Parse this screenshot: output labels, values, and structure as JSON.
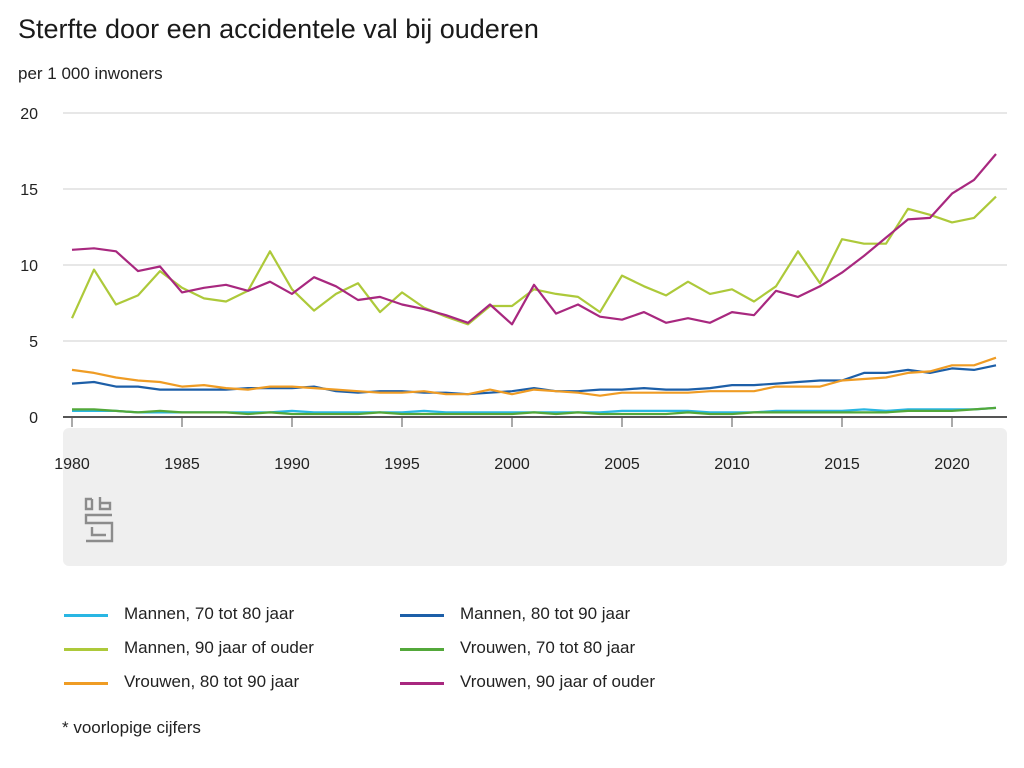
{
  "header": {
    "title": "Sterfte door een accidentele val bij ouderen",
    "unit": "per 1 000 inwoners"
  },
  "footnote": "* voorlopige cijfers",
  "logo": {
    "icon": "cbs-logo-icon"
  },
  "chart_data": {
    "type": "line",
    "title": "Sterfte door een accidentele val bij ouderen",
    "ylabel": "per 1 000 inwoners",
    "xlabel": "",
    "xlim": [
      1980,
      2022
    ],
    "ylim": [
      0,
      20
    ],
    "xticks": [
      1980,
      1985,
      1990,
      1995,
      2000,
      2005,
      2010,
      2015,
      2020
    ],
    "yticks": [
      0,
      5,
      10,
      15,
      20
    ],
    "grid": "horizontal",
    "legend_position": "bottom",
    "x": [
      1980,
      1981,
      1982,
      1983,
      1984,
      1985,
      1986,
      1987,
      1988,
      1989,
      1990,
      1991,
      1992,
      1993,
      1994,
      1995,
      1996,
      1997,
      1998,
      1999,
      2000,
      2001,
      2002,
      2003,
      2004,
      2005,
      2006,
      2007,
      2008,
      2009,
      2010,
      2011,
      2012,
      2013,
      2014,
      2015,
      2016,
      2017,
      2018,
      2019,
      2020,
      2021,
      2022
    ],
    "series": [
      {
        "name": "Mannen, 70 tot 80 jaar",
        "color": "#29b6e3",
        "values": [
          0.4,
          0.4,
          0.4,
          0.3,
          0.3,
          0.3,
          0.3,
          0.3,
          0.3,
          0.3,
          0.4,
          0.3,
          0.3,
          0.3,
          0.3,
          0.3,
          0.4,
          0.3,
          0.3,
          0.3,
          0.3,
          0.3,
          0.3,
          0.3,
          0.3,
          0.4,
          0.4,
          0.4,
          0.4,
          0.3,
          0.3,
          0.3,
          0.4,
          0.4,
          0.4,
          0.4,
          0.5,
          0.4,
          0.5,
          0.5,
          0.5,
          0.5,
          0.6
        ]
      },
      {
        "name": "Mannen, 80 tot 90 jaar",
        "color": "#1d5fa8",
        "values": [
          2.2,
          2.3,
          2.0,
          2.0,
          1.8,
          1.8,
          1.8,
          1.8,
          1.9,
          1.9,
          1.9,
          2.0,
          1.7,
          1.6,
          1.7,
          1.7,
          1.6,
          1.6,
          1.5,
          1.6,
          1.7,
          1.9,
          1.7,
          1.7,
          1.8,
          1.8,
          1.9,
          1.8,
          1.8,
          1.9,
          2.1,
          2.1,
          2.2,
          2.3,
          2.4,
          2.4,
          2.9,
          2.9,
          3.1,
          2.9,
          3.2,
          3.1,
          3.4
        ]
      },
      {
        "name": "Mannen, 90 jaar of ouder",
        "color": "#adc93a",
        "values": [
          6.5,
          9.7,
          7.4,
          8.0,
          9.6,
          8.5,
          7.8,
          7.6,
          8.3,
          10.9,
          8.4,
          7.0,
          8.1,
          8.8,
          6.9,
          8.2,
          7.2,
          6.6,
          6.1,
          7.3,
          7.3,
          8.4,
          8.1,
          7.9,
          6.9,
          9.3,
          8.6,
          8.0,
          8.9,
          8.1,
          8.4,
          7.6,
          8.6,
          10.9,
          8.8,
          11.7,
          11.4,
          11.4,
          13.7,
          13.3,
          12.8,
          13.1,
          14.5
        ]
      },
      {
        "name": "Vrouwen, 70 tot 80 jaar",
        "color": "#53a83a",
        "values": [
          0.5,
          0.5,
          0.4,
          0.3,
          0.4,
          0.3,
          0.3,
          0.3,
          0.2,
          0.3,
          0.2,
          0.2,
          0.2,
          0.2,
          0.3,
          0.2,
          0.2,
          0.2,
          0.2,
          0.2,
          0.2,
          0.3,
          0.2,
          0.3,
          0.2,
          0.2,
          0.2,
          0.2,
          0.3,
          0.2,
          0.2,
          0.3,
          0.3,
          0.3,
          0.3,
          0.3,
          0.3,
          0.3,
          0.4,
          0.4,
          0.4,
          0.5,
          0.6
        ]
      },
      {
        "name": "Vrouwen, 80 tot 90 jaar",
        "color": "#ef9c24",
        "values": [
          3.1,
          2.9,
          2.6,
          2.4,
          2.3,
          2.0,
          2.1,
          1.9,
          1.8,
          2.0,
          2.0,
          1.9,
          1.8,
          1.7,
          1.6,
          1.6,
          1.7,
          1.5,
          1.5,
          1.8,
          1.5,
          1.8,
          1.7,
          1.6,
          1.4,
          1.6,
          1.6,
          1.6,
          1.6,
          1.7,
          1.7,
          1.7,
          2.0,
          2.0,
          2.0,
          2.4,
          2.5,
          2.6,
          2.9,
          3.0,
          3.4,
          3.4,
          3.9
        ]
      },
      {
        "name": "Vrouwen, 90 jaar of ouder",
        "color": "#a8287f",
        "values": [
          11.0,
          11.1,
          10.9,
          9.6,
          9.9,
          8.2,
          8.5,
          8.7,
          8.3,
          8.9,
          8.1,
          9.2,
          8.6,
          7.7,
          7.9,
          7.4,
          7.1,
          6.7,
          6.2,
          7.4,
          6.1,
          8.7,
          6.8,
          7.4,
          6.6,
          6.4,
          6.9,
          6.2,
          6.5,
          6.2,
          6.9,
          6.7,
          8.3,
          7.9,
          8.6,
          9.5,
          10.6,
          11.8,
          13.0,
          13.1,
          14.7,
          15.6,
          17.3
        ]
      }
    ]
  }
}
